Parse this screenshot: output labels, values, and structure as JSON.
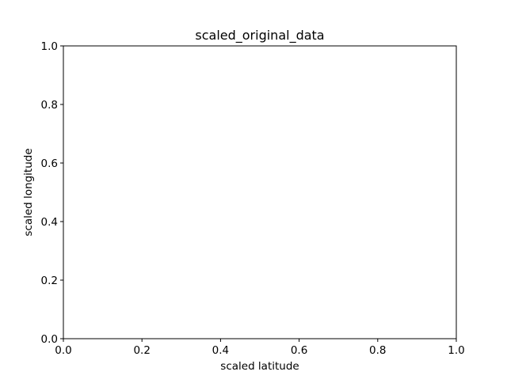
{
  "chart_data": {
    "type": "scatter",
    "title": "scaled_original_data",
    "xlabel": "scaled latitude",
    "ylabel": "scaled longitude",
    "xlim": [
      0.0,
      1.0
    ],
    "ylim": [
      0.0,
      1.0
    ],
    "x_ticks": [
      "0.0",
      "0.2",
      "0.4",
      "0.6",
      "0.8",
      "1.0"
    ],
    "y_ticks": [
      "0.0",
      "0.2",
      "0.4",
      "0.6",
      "0.8",
      "1.0"
    ],
    "grid": false,
    "series": [
      {
        "x": [],
        "y": []
      }
    ]
  }
}
